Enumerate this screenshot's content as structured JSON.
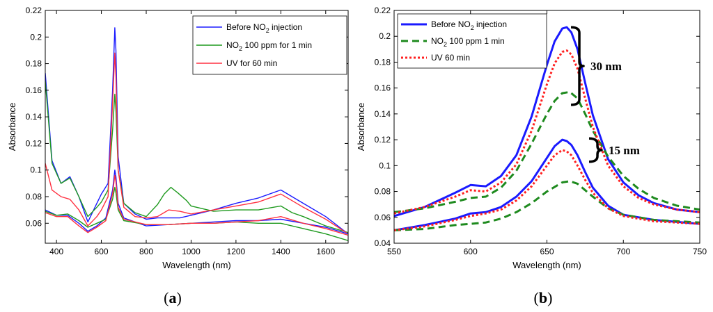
{
  "chart_data": [
    {
      "type": "line",
      "panel_label": "a",
      "xlabel": "Wavelength (nm)",
      "ylabel": "Absorbance",
      "xlim": [
        350,
        1700
      ],
      "ylim": [
        0.045,
        0.22
      ],
      "xticks": [
        400,
        600,
        800,
        1000,
        1200,
        1400,
        1600
      ],
      "yticks": [
        0.06,
        0.08,
        0.1,
        0.12,
        0.14,
        0.16,
        0.18,
        0.2,
        0.22
      ],
      "legend_position": "top-right",
      "series": [
        {
          "name": "Before NO2 injection",
          "legend_main": "Before NO",
          "legend_sub": "2",
          "legend_tail": " injection",
          "color": "#1a1aff",
          "x": [
            350,
            380,
            420,
            460,
            500,
            540,
            580,
            600,
            630,
            650,
            660,
            665,
            675,
            700,
            750,
            800,
            850,
            900,
            950,
            1000,
            1100,
            1200,
            1300,
            1400,
            1450,
            1500,
            1600,
            1700
          ],
          "y": [
            0.173,
            0.107,
            0.09,
            0.095,
            0.08,
            0.061,
            0.075,
            0.082,
            0.09,
            0.16,
            0.207,
            0.19,
            0.11,
            0.075,
            0.067,
            0.063,
            0.064,
            0.064,
            0.064,
            0.066,
            0.07,
            0.075,
            0.079,
            0.085,
            0.08,
            0.075,
            0.065,
            0.052
          ]
        },
        {
          "name": "NO2 100 ppm for 1 min",
          "legend_main": "NO",
          "legend_sub": "2",
          "legend_tail": " 100 ppm for 1 min",
          "color": "#1f9a1f",
          "x": [
            350,
            380,
            420,
            460,
            500,
            540,
            580,
            600,
            630,
            650,
            660,
            665,
            675,
            700,
            750,
            800,
            850,
            880,
            910,
            940,
            980,
            1000,
            1100,
            1200,
            1300,
            1400,
            1450,
            1500,
            1600,
            1700
          ],
          "y": [
            0.167,
            0.105,
            0.09,
            0.094,
            0.08,
            0.065,
            0.072,
            0.076,
            0.085,
            0.13,
            0.157,
            0.145,
            0.1,
            0.075,
            0.068,
            0.065,
            0.074,
            0.082,
            0.087,
            0.083,
            0.077,
            0.073,
            0.069,
            0.07,
            0.07,
            0.073,
            0.068,
            0.065,
            0.058,
            0.053
          ]
        },
        {
          "name": "UV for 60 min",
          "legend_main": "UV for 60 min",
          "legend_sub": "",
          "legend_tail": "",
          "color": "#ff3040",
          "x": [
            350,
            380,
            420,
            460,
            500,
            540,
            580,
            600,
            630,
            650,
            660,
            665,
            675,
            700,
            750,
            800,
            850,
            900,
            950,
            1000,
            1100,
            1200,
            1300,
            1400,
            1450,
            1500,
            1600,
            1700
          ],
          "y": [
            0.105,
            0.085,
            0.08,
            0.078,
            0.07,
            0.058,
            0.065,
            0.07,
            0.08,
            0.15,
            0.188,
            0.17,
            0.1,
            0.072,
            0.065,
            0.064,
            0.065,
            0.07,
            0.069,
            0.067,
            0.07,
            0.073,
            0.076,
            0.082,
            0.077,
            0.072,
            0.063,
            0.052
          ]
        },
        {
          "name": "Before NO2 injection (lower)",
          "color": "#1a1aff",
          "x": [
            350,
            400,
            450,
            500,
            540,
            580,
            620,
            650,
            660,
            665,
            675,
            700,
            800,
            900,
            1000,
            1100,
            1200,
            1300,
            1400,
            1500,
            1600,
            1700
          ],
          "y": [
            0.07,
            0.066,
            0.066,
            0.06,
            0.054,
            0.058,
            0.064,
            0.085,
            0.1,
            0.095,
            0.075,
            0.064,
            0.058,
            0.059,
            0.06,
            0.061,
            0.062,
            0.062,
            0.063,
            0.06,
            0.057,
            0.052
          ]
        },
        {
          "name": "NO2 100 ppm for 1 min (lower)",
          "color": "#1f9a1f",
          "x": [
            350,
            400,
            450,
            500,
            540,
            580,
            620,
            650,
            660,
            665,
            675,
            700,
            800,
            900,
            1000,
            1100,
            1200,
            1300,
            1400,
            1500,
            1600,
            1700
          ],
          "y": [
            0.069,
            0.066,
            0.067,
            0.062,
            0.057,
            0.06,
            0.063,
            0.078,
            0.087,
            0.083,
            0.07,
            0.062,
            0.059,
            0.059,
            0.06,
            0.06,
            0.061,
            0.06,
            0.06,
            0.056,
            0.052,
            0.047
          ]
        },
        {
          "name": "UV for 60 min (lower)",
          "color": "#ff3040",
          "x": [
            350,
            400,
            450,
            500,
            540,
            580,
            620,
            650,
            660,
            665,
            675,
            700,
            800,
            900,
            1000,
            1100,
            1200,
            1300,
            1400,
            1500,
            1600,
            1700
          ],
          "y": [
            0.068,
            0.065,
            0.065,
            0.058,
            0.053,
            0.057,
            0.062,
            0.082,
            0.096,
            0.091,
            0.072,
            0.063,
            0.059,
            0.059,
            0.06,
            0.06,
            0.061,
            0.062,
            0.065,
            0.06,
            0.056,
            0.051
          ]
        }
      ]
    },
    {
      "type": "line",
      "panel_label": "b",
      "xlabel": "Wavelength (nm)",
      "ylabel": "Absorbance",
      "xlim": [
        550,
        750
      ],
      "ylim": [
        0.04,
        0.22
      ],
      "xticks": [
        550,
        600,
        650,
        700,
        750
      ],
      "yticks": [
        0.04,
        0.06,
        0.08,
        0.1,
        0.12,
        0.14,
        0.16,
        0.18,
        0.2,
        0.22
      ],
      "legend_position": "top-left",
      "annotations": [
        "30 nm",
        "15 nm"
      ],
      "series": [
        {
          "name": "Before NO2 injection",
          "legend_main": "Before NO",
          "legend_sub": "2",
          "legend_tail": " injection",
          "color": "#1a1aff",
          "style": "solid",
          "x": [
            550,
            570,
            590,
            600,
            610,
            620,
            630,
            640,
            650,
            655,
            660,
            663,
            666,
            670,
            675,
            680,
            690,
            700,
            710,
            720,
            735,
            750
          ],
          "y": [
            0.061,
            0.068,
            0.079,
            0.085,
            0.084,
            0.092,
            0.108,
            0.138,
            0.178,
            0.196,
            0.206,
            0.207,
            0.203,
            0.19,
            0.164,
            0.139,
            0.105,
            0.087,
            0.077,
            0.071,
            0.066,
            0.064
          ]
        },
        {
          "name": "NO2 100 ppm 1 min",
          "legend_main": "NO",
          "legend_sub": "2",
          "legend_tail": " 100 ppm 1 min",
          "color": "#1e8a1e",
          "style": "dashed",
          "x": [
            550,
            570,
            590,
            600,
            610,
            620,
            630,
            640,
            650,
            655,
            660,
            665,
            670,
            675,
            680,
            690,
            700,
            710,
            720,
            735,
            750
          ],
          "y": [
            0.064,
            0.067,
            0.072,
            0.075,
            0.076,
            0.083,
            0.096,
            0.117,
            0.14,
            0.15,
            0.156,
            0.157,
            0.152,
            0.14,
            0.127,
            0.107,
            0.092,
            0.082,
            0.075,
            0.069,
            0.066
          ]
        },
        {
          "name": "UV 60 min",
          "legend_main": "UV 60 min",
          "legend_sub": "",
          "legend_tail": "",
          "color": "#ff2020",
          "style": "dotted",
          "x": [
            550,
            570,
            590,
            600,
            610,
            620,
            630,
            640,
            650,
            655,
            660,
            663,
            666,
            670,
            675,
            680,
            690,
            700,
            710,
            720,
            735,
            750
          ],
          "y": [
            0.063,
            0.068,
            0.076,
            0.081,
            0.08,
            0.087,
            0.101,
            0.127,
            0.163,
            0.179,
            0.188,
            0.189,
            0.186,
            0.175,
            0.152,
            0.13,
            0.1,
            0.084,
            0.075,
            0.07,
            0.066,
            0.064
          ]
        },
        {
          "name": "Before NO2 injection (lower)",
          "color": "#1a1aff",
          "style": "solid",
          "x": [
            550,
            570,
            590,
            600,
            610,
            620,
            630,
            640,
            650,
            655,
            660,
            663,
            666,
            670,
            675,
            680,
            690,
            700,
            720,
            750
          ],
          "y": [
            0.05,
            0.054,
            0.059,
            0.063,
            0.064,
            0.068,
            0.076,
            0.088,
            0.106,
            0.115,
            0.12,
            0.119,
            0.116,
            0.108,
            0.095,
            0.083,
            0.069,
            0.062,
            0.058,
            0.055
          ]
        },
        {
          "name": "NO2 100 ppm 1 min (lower)",
          "color": "#1e8a1e",
          "style": "dashed",
          "x": [
            550,
            570,
            590,
            600,
            610,
            620,
            630,
            640,
            650,
            660,
            665,
            670,
            675,
            680,
            690,
            700,
            720,
            750
          ],
          "y": [
            0.05,
            0.051,
            0.054,
            0.055,
            0.056,
            0.059,
            0.064,
            0.071,
            0.08,
            0.087,
            0.088,
            0.086,
            0.081,
            0.076,
            0.067,
            0.062,
            0.058,
            0.056
          ]
        },
        {
          "name": "UV 60 min (lower)",
          "color": "#ff2020",
          "style": "dotted",
          "x": [
            550,
            570,
            590,
            600,
            610,
            620,
            630,
            640,
            650,
            655,
            660,
            663,
            666,
            670,
            675,
            680,
            690,
            700,
            720,
            750
          ],
          "y": [
            0.05,
            0.053,
            0.058,
            0.061,
            0.063,
            0.066,
            0.073,
            0.084,
            0.1,
            0.108,
            0.112,
            0.111,
            0.108,
            0.1,
            0.089,
            0.079,
            0.067,
            0.061,
            0.057,
            0.055
          ]
        }
      ]
    }
  ]
}
